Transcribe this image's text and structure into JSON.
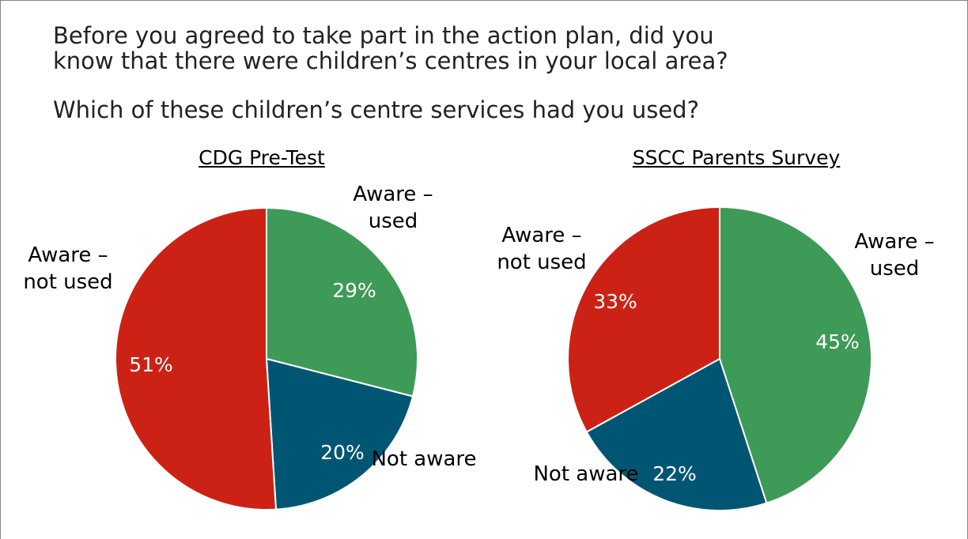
{
  "heading": [
    "Before you agreed to take part in the action plan, did you",
    "know that there were children’s centres in your local area?"
  ],
  "subheading": "Which of these children’s centre services had you used?",
  "chart_data": [
    {
      "type": "pie",
      "title": "CDG Pre-Test",
      "categories": [
        "Aware – used",
        "Not aware",
        "Aware – not used"
      ],
      "values": [
        29,
        20,
        51
      ],
      "value_labels": [
        "29%",
        "20%",
        "51%"
      ],
      "colors": [
        "#3e9a57",
        "#005672",
        "#cc2216"
      ]
    },
    {
      "type": "pie",
      "title": "SSCC Parents Survey",
      "categories": [
        "Aware – used",
        "Not aware",
        "Aware – not used"
      ],
      "values": [
        45,
        22,
        33
      ],
      "value_labels": [
        "45%",
        "22%",
        "33%"
      ],
      "colors": [
        "#3e9a57",
        "#005672",
        "#cc2216"
      ]
    }
  ]
}
